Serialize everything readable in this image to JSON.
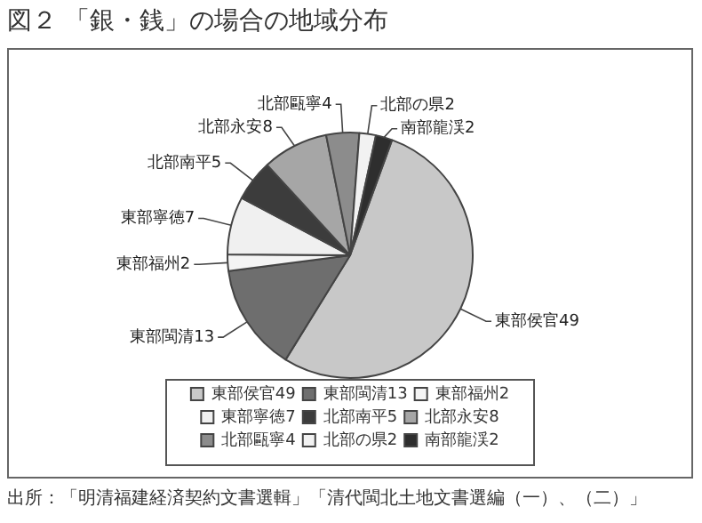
{
  "chart_data": {
    "type": "pie",
    "title": "図２ 「銀・銭」の場合の地域分布",
    "categories": [
      "東部侯官49",
      "東部閩清13",
      "東部福州2",
      "東部寧徳7",
      "北部南平5",
      "北部永安8",
      "北部甌寧4",
      "北部の県2",
      "南部龍渓2"
    ],
    "values": [
      49,
      13,
      2,
      7,
      5,
      8,
      4,
      2,
      2
    ],
    "colors": [
      "#c8c8c8",
      "#6e6e6e",
      "#f4f4f4",
      "#f0f0f0",
      "#3c3c3c",
      "#a6a6a6",
      "#8c8c8c",
      "#f2f2f2",
      "#2e2e2e"
    ],
    "legend": "bottom",
    "annotations": [
      "出所：「明清福建経済契約文書選輯」「清代閩北土地文書選編（一）、（二）」"
    ]
  }
}
